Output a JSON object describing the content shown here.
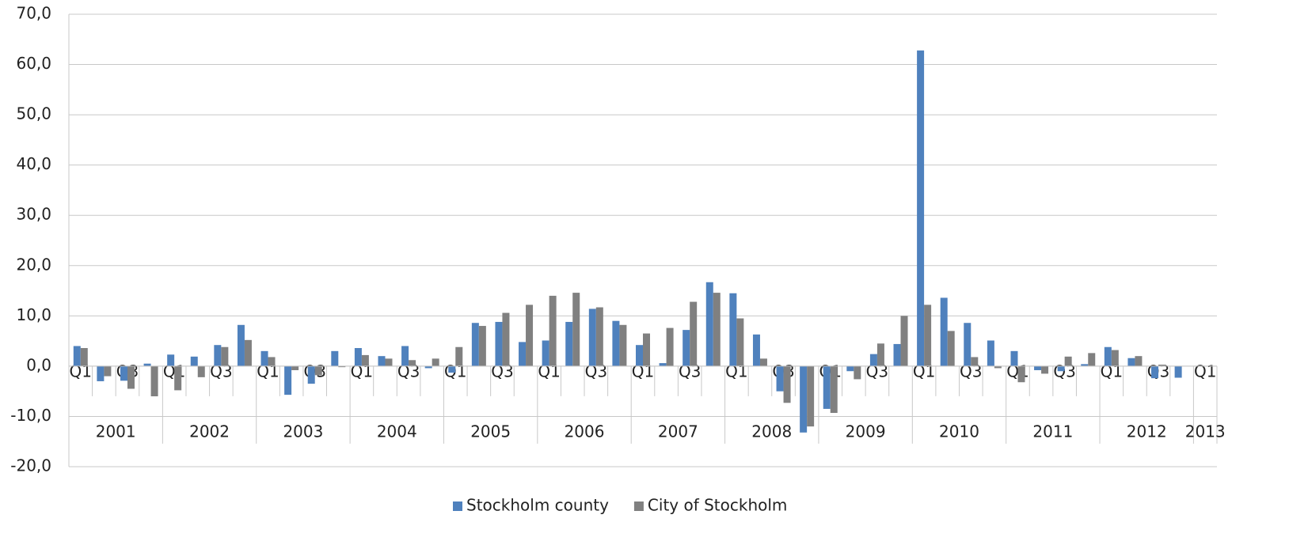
{
  "chart_data": {
    "type": "bar",
    "categories": [
      "Q1",
      null,
      "Q3",
      null,
      "Q1",
      null,
      "Q3",
      null,
      "Q1",
      null,
      "Q3",
      null,
      "Q1",
      null,
      "Q3",
      null,
      "Q1",
      null,
      "Q3",
      null,
      "Q1",
      null,
      "Q3",
      null,
      "Q1",
      null,
      "Q3",
      null,
      "Q1",
      null,
      "Q3",
      null,
      "Q1",
      null,
      "Q3",
      null,
      "Q1",
      null,
      "Q3",
      null,
      "Q1",
      null,
      "Q3",
      null,
      "Q1",
      null,
      "Q3",
      null,
      "Q1"
    ],
    "years": [
      "2001",
      "2002",
      "2003",
      "2004",
      "2005",
      "2006",
      "2007",
      "2008",
      "2009",
      "2010",
      "2011",
      "2012",
      "2013"
    ],
    "series": [
      {
        "name": "Stockholm county",
        "color": "#4f81bd",
        "values": [
          4.0,
          -3.0,
          -2.9,
          0.5,
          2.3,
          1.9,
          4.2,
          8.2,
          3.0,
          -5.7,
          -3.5,
          3.0,
          3.6,
          2.0,
          4.0,
          -0.4,
          -1.3,
          8.6,
          8.8,
          4.8,
          5.1,
          8.8,
          11.4,
          9.0,
          4.2,
          0.6,
          7.2,
          16.7,
          14.5,
          6.3,
          -5.0,
          -13.2,
          -8.5,
          -1.0,
          2.4,
          4.4,
          62.8,
          13.6,
          8.6,
          5.1,
          3.0,
          -0.8,
          -1.0,
          0.4,
          3.8,
          1.6,
          -2.4,
          -2.3,
          null
        ]
      },
      {
        "name": "City of Stockholm",
        "color": "#808080",
        "values": [
          3.6,
          -2.0,
          -4.5,
          -6.0,
          -4.8,
          -2.2,
          3.8,
          5.2,
          1.8,
          -0.8,
          -1.8,
          -0.2,
          2.2,
          1.5,
          1.2,
          1.5,
          3.8,
          8.0,
          10.6,
          12.2,
          14.0,
          14.6,
          11.7,
          8.2,
          6.5,
          7.6,
          12.8,
          14.6,
          9.5,
          1.5,
          -7.3,
          -12.0,
          -9.3,
          -2.6,
          4.5,
          10.0,
          12.2,
          7.0,
          1.8,
          -0.4,
          -3.2,
          -1.5,
          1.9,
          2.6,
          3.2,
          2.0,
          0.3,
          null,
          null
        ]
      }
    ],
    "ylim": [
      -20,
      70
    ],
    "yticks": [
      {
        "value": -20,
        "label": "-20,0"
      },
      {
        "value": -10,
        "label": "-10,0"
      },
      {
        "value": 0,
        "label": "0,0"
      },
      {
        "value": 10,
        "label": "10,0"
      },
      {
        "value": 20,
        "label": "20,0"
      },
      {
        "value": 30,
        "label": "30,0"
      },
      {
        "value": 40,
        "label": "40,0"
      },
      {
        "value": 50,
        "label": "50,0"
      },
      {
        "value": 60,
        "label": "60,0"
      },
      {
        "value": 70,
        "label": "70,0"
      }
    ],
    "grid": true,
    "legend": "bottom"
  }
}
